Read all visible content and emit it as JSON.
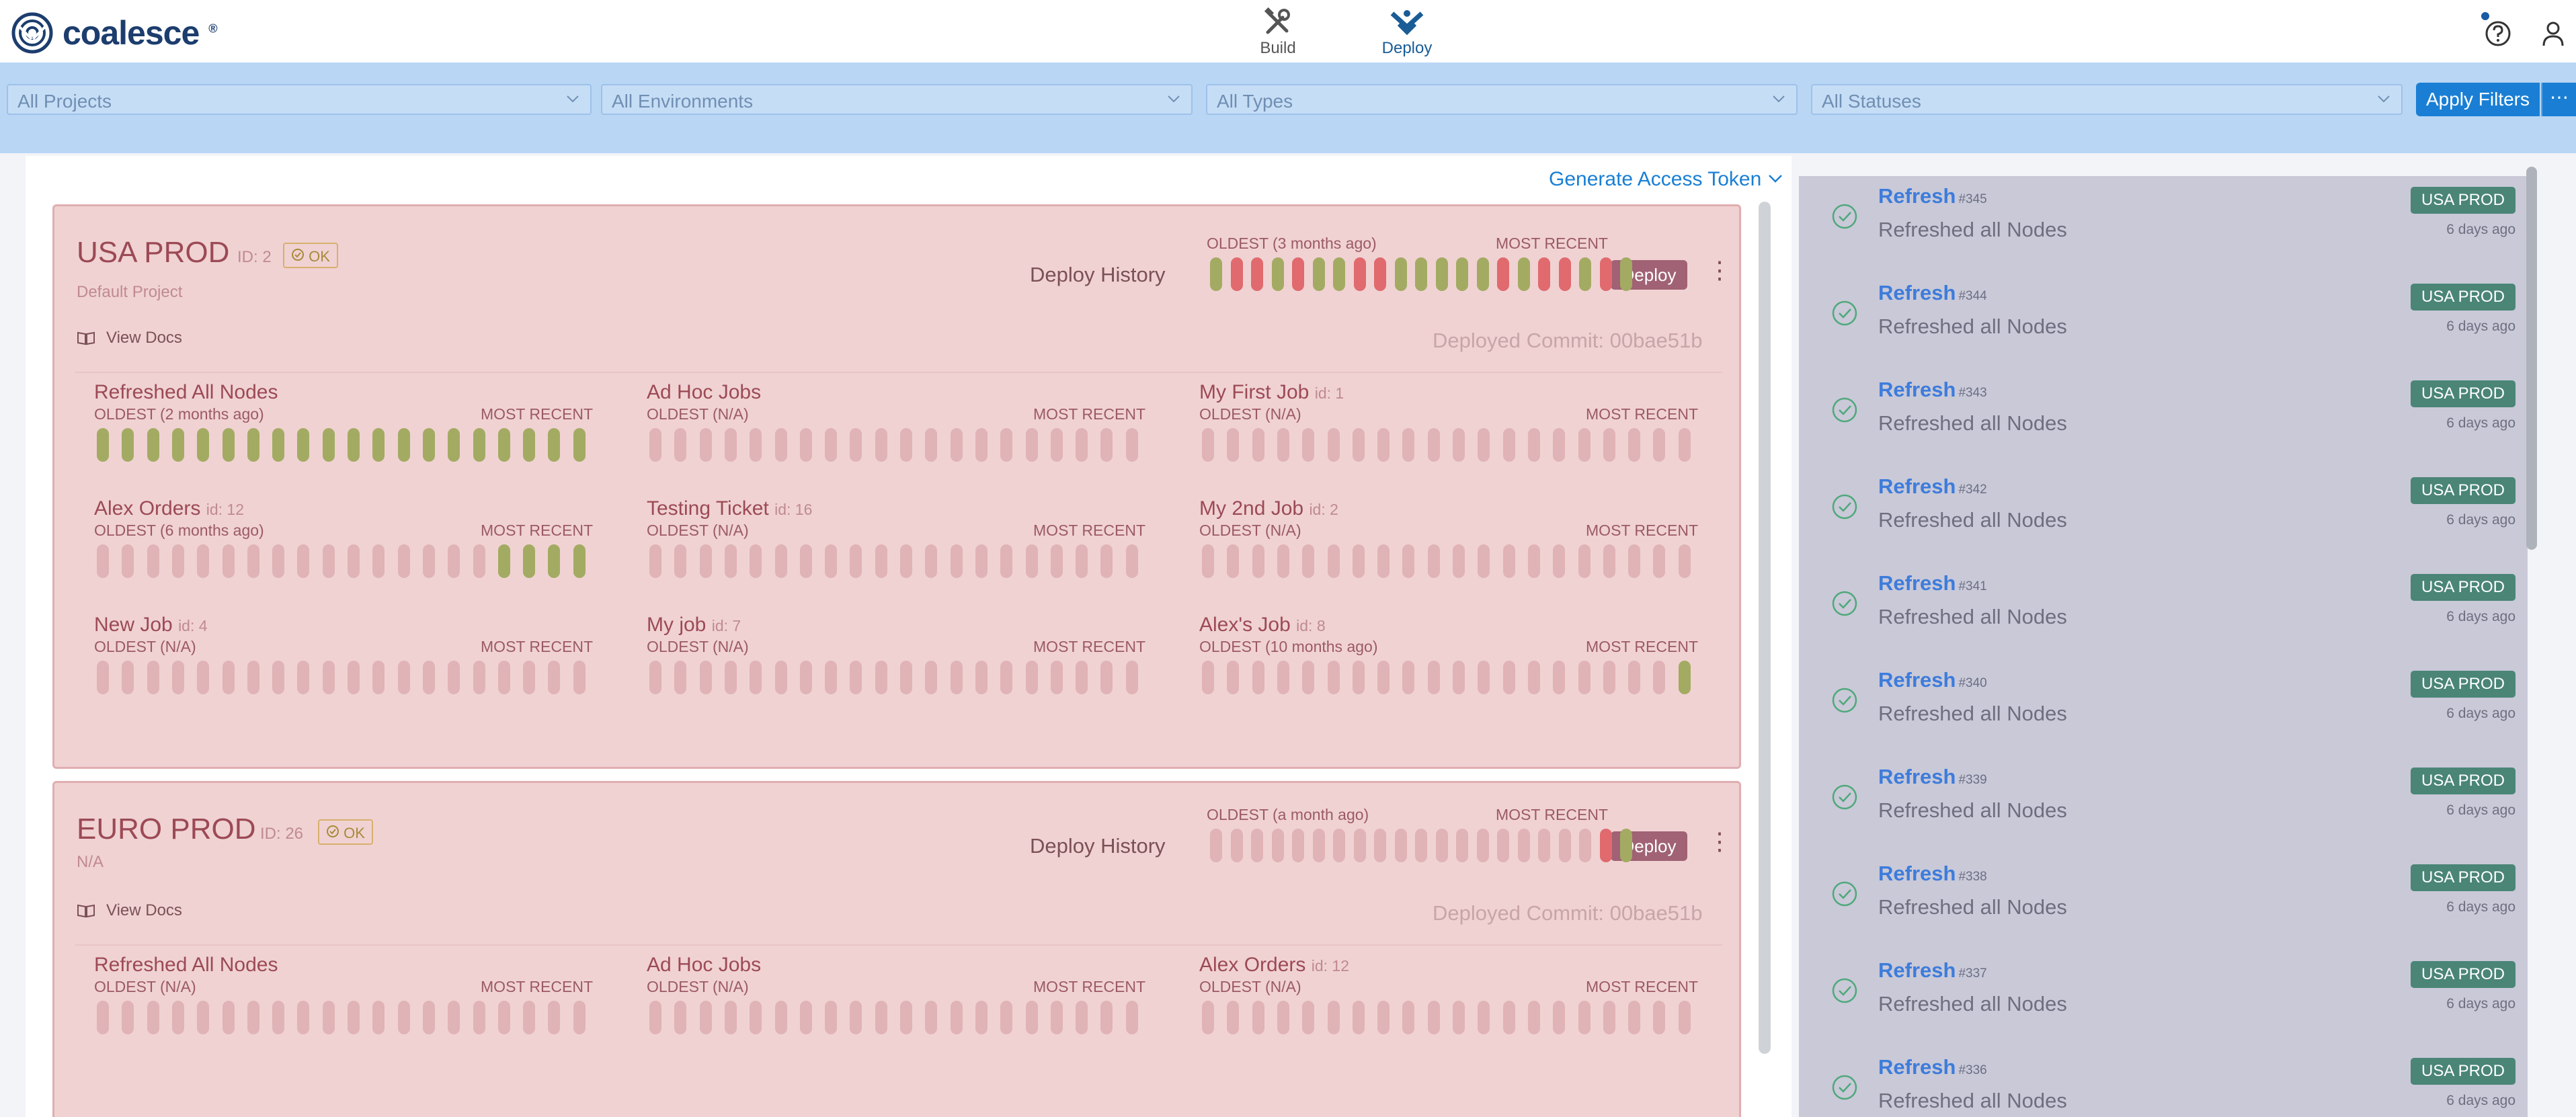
{
  "app": {
    "logo_text": "coalesce"
  },
  "nav": {
    "build_label": "Build",
    "deploy_label": "Deploy"
  },
  "filters": {
    "projects": "All Projects",
    "environments": "All Environments",
    "types": "All Types",
    "statuses": "All Statuses",
    "apply_label": "Apply Filters",
    "more_label": "⋯"
  },
  "main": {
    "token_link": "Generate Access Token"
  },
  "environments": [
    {
      "name": "USA PROD",
      "id_text": "ID: 2",
      "status": "OK",
      "project": "Default Project",
      "view_docs": "View Docs",
      "deploy_history_label": "Deploy History",
      "history_oldest": "OLDEST (3 months ago)",
      "history_recent": "MOST RECENT",
      "history": [
        "green",
        "red",
        "red",
        "green",
        "red",
        "green",
        "green",
        "red",
        "red",
        "green",
        "green",
        "green",
        "green",
        "green",
        "red",
        "green",
        "red",
        "red",
        "green",
        "red",
        "green"
      ],
      "deploy_label": "Deploy",
      "commit": "Deployed Commit: 00bae51b",
      "jobs": [
        {
          "title": "Refreshed All Nodes",
          "jid": "",
          "oldest": "OLDEST (2 months ago)",
          "recent": "MOST RECENT",
          "bars": [
            "g",
            "g",
            "g",
            "g",
            "g",
            "g",
            "g",
            "g",
            "g",
            "g",
            "g",
            "g",
            "g",
            "g",
            "g",
            "g",
            "g",
            "g",
            "g",
            "g"
          ]
        },
        {
          "title": "Ad Hoc Jobs",
          "jid": "",
          "oldest": "OLDEST (N/A)",
          "recent": "MOST RECENT",
          "bars": [
            "e",
            "e",
            "e",
            "e",
            "e",
            "e",
            "e",
            "e",
            "e",
            "e",
            "e",
            "e",
            "e",
            "e",
            "e",
            "e",
            "e",
            "e",
            "e",
            "e"
          ]
        },
        {
          "title": "My First Job",
          "jid": "id: 1",
          "oldest": "OLDEST (N/A)",
          "recent": "MOST RECENT",
          "bars": [
            "e",
            "e",
            "e",
            "e",
            "e",
            "e",
            "e",
            "e",
            "e",
            "e",
            "e",
            "e",
            "e",
            "e",
            "e",
            "e",
            "e",
            "e",
            "e",
            "e"
          ]
        },
        {
          "title": "Alex Orders",
          "jid": "id: 12",
          "oldest": "OLDEST (6 months ago)",
          "recent": "MOST RECENT",
          "bars": [
            "e",
            "e",
            "e",
            "e",
            "e",
            "e",
            "e",
            "e",
            "e",
            "e",
            "e",
            "e",
            "e",
            "e",
            "e",
            "e",
            "g",
            "g",
            "g",
            "g"
          ]
        },
        {
          "title": "Testing Ticket",
          "jid": "id: 16",
          "oldest": "OLDEST (N/A)",
          "recent": "MOST RECENT",
          "bars": [
            "e",
            "e",
            "e",
            "e",
            "e",
            "e",
            "e",
            "e",
            "e",
            "e",
            "e",
            "e",
            "e",
            "e",
            "e",
            "e",
            "e",
            "e",
            "e",
            "e"
          ]
        },
        {
          "title": "My 2nd Job",
          "jid": "id: 2",
          "oldest": "OLDEST (N/A)",
          "recent": "MOST RECENT",
          "bars": [
            "e",
            "e",
            "e",
            "e",
            "e",
            "e",
            "e",
            "e",
            "e",
            "e",
            "e",
            "e",
            "e",
            "e",
            "e",
            "e",
            "e",
            "e",
            "e",
            "e"
          ]
        },
        {
          "title": "New Job",
          "jid": "id: 4",
          "oldest": "OLDEST (N/A)",
          "recent": "MOST RECENT",
          "bars": [
            "e",
            "e",
            "e",
            "e",
            "e",
            "e",
            "e",
            "e",
            "e",
            "e",
            "e",
            "e",
            "e",
            "e",
            "e",
            "e",
            "e",
            "e",
            "e",
            "e"
          ]
        },
        {
          "title": "My job",
          "jid": "id: 7",
          "oldest": "OLDEST (N/A)",
          "recent": "MOST RECENT",
          "bars": [
            "e",
            "e",
            "e",
            "e",
            "e",
            "e",
            "e",
            "e",
            "e",
            "e",
            "e",
            "e",
            "e",
            "e",
            "e",
            "e",
            "e",
            "e",
            "e",
            "e"
          ]
        },
        {
          "title": "Alex's Job",
          "jid": "id: 8",
          "oldest": "OLDEST (10 months ago)",
          "recent": "MOST RECENT",
          "bars": [
            "e",
            "e",
            "e",
            "e",
            "e",
            "e",
            "e",
            "e",
            "e",
            "e",
            "e",
            "e",
            "e",
            "e",
            "e",
            "e",
            "e",
            "e",
            "e",
            "g"
          ]
        }
      ]
    },
    {
      "name": "EURO PROD",
      "id_text": "ID: 26",
      "status": "OK",
      "project": "N/A",
      "view_docs": "View Docs",
      "deploy_history_label": "Deploy History",
      "history_oldest": "OLDEST (a month ago)",
      "history_recent": "MOST RECENT",
      "history": [
        "empty",
        "empty",
        "empty",
        "empty",
        "empty",
        "empty",
        "empty",
        "empty",
        "empty",
        "empty",
        "empty",
        "empty",
        "empty",
        "empty",
        "empty",
        "empty",
        "empty",
        "empty",
        "empty",
        "red",
        "green"
      ],
      "deploy_label": "Deploy",
      "commit": "Deployed Commit: 00bae51b",
      "jobs": [
        {
          "title": "Refreshed All Nodes",
          "jid": "",
          "oldest": "OLDEST (N/A)",
          "recent": "MOST RECENT",
          "bars": [
            "e",
            "e",
            "e",
            "e",
            "e",
            "e",
            "e",
            "e",
            "e",
            "e",
            "e",
            "e",
            "e",
            "e",
            "e",
            "e",
            "e",
            "e",
            "e",
            "e"
          ]
        },
        {
          "title": "Ad Hoc Jobs",
          "jid": "",
          "oldest": "OLDEST (N/A)",
          "recent": "MOST RECENT",
          "bars": [
            "e",
            "e",
            "e",
            "e",
            "e",
            "e",
            "e",
            "e",
            "e",
            "e",
            "e",
            "e",
            "e",
            "e",
            "e",
            "e",
            "e",
            "e",
            "e",
            "e"
          ]
        },
        {
          "title": "Alex Orders",
          "jid": "id: 12",
          "oldest": "OLDEST (N/A)",
          "recent": "MOST RECENT",
          "bars": [
            "e",
            "e",
            "e",
            "e",
            "e",
            "e",
            "e",
            "e",
            "e",
            "e",
            "e",
            "e",
            "e",
            "e",
            "e",
            "e",
            "e",
            "e",
            "e",
            "e"
          ]
        }
      ]
    }
  ],
  "runs": [
    {
      "title": "Refresh",
      "num": "#345",
      "desc": "Refreshed all Nodes",
      "env": "USA PROD",
      "time": "6 days ago"
    },
    {
      "title": "Refresh",
      "num": "#344",
      "desc": "Refreshed all Nodes",
      "env": "USA PROD",
      "time": "6 days ago"
    },
    {
      "title": "Refresh",
      "num": "#343",
      "desc": "Refreshed all Nodes",
      "env": "USA PROD",
      "time": "6 days ago"
    },
    {
      "title": "Refresh",
      "num": "#342",
      "desc": "Refreshed all Nodes",
      "env": "USA PROD",
      "time": "6 days ago"
    },
    {
      "title": "Refresh",
      "num": "#341",
      "desc": "Refreshed all Nodes",
      "env": "USA PROD",
      "time": "6 days ago"
    },
    {
      "title": "Refresh",
      "num": "#340",
      "desc": "Refreshed all Nodes",
      "env": "USA PROD",
      "time": "6 days ago"
    },
    {
      "title": "Refresh",
      "num": "#339",
      "desc": "Refreshed all Nodes",
      "env": "USA PROD",
      "time": "6 days ago"
    },
    {
      "title": "Refresh",
      "num": "#338",
      "desc": "Refreshed all Nodes",
      "env": "USA PROD",
      "time": "6 days ago"
    },
    {
      "title": "Refresh",
      "num": "#337",
      "desc": "Refreshed all Nodes",
      "env": "USA PROD",
      "time": "6 days ago"
    },
    {
      "title": "Refresh",
      "num": "#336",
      "desc": "Refreshed all Nodes",
      "env": "USA PROD",
      "time": "6 days ago"
    }
  ],
  "colors": {
    "bar_green": "#a3ab62",
    "bar_red": "#e06a6e",
    "bar_empty": "#e0b3b6",
    "accent": "#1a7fd4"
  }
}
